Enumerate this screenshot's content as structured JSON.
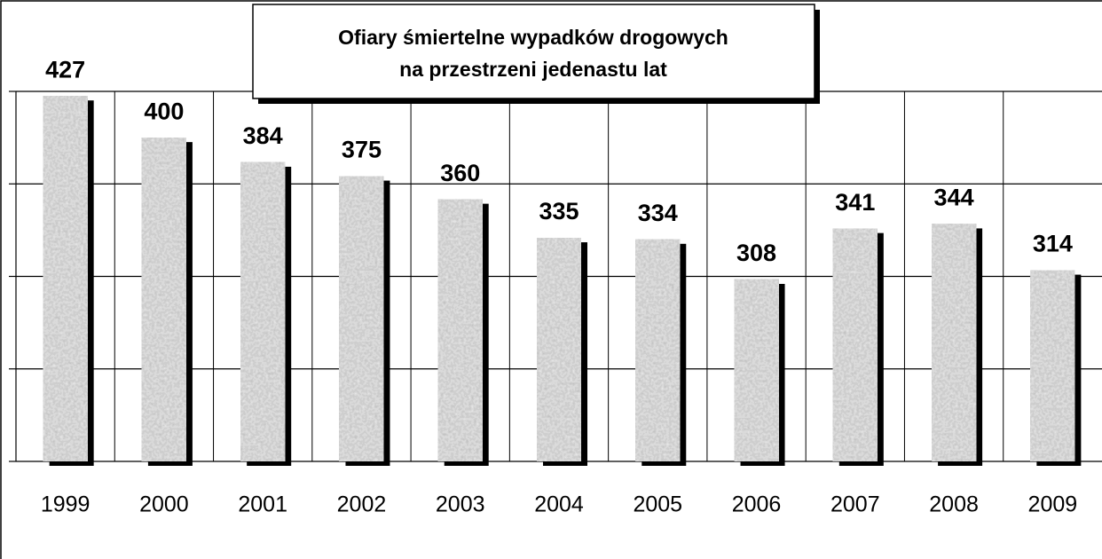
{
  "chart_data": {
    "type": "bar",
    "title": [
      "Ofiary  śmiertelne wypadków drogowych",
      "na przestrzeni jedenastu lat"
    ],
    "categories": [
      "1999",
      "2000",
      "2001",
      "2002",
      "2003",
      "2004",
      "2005",
      "2006",
      "2007",
      "2008",
      "2009"
    ],
    "values": [
      427,
      400,
      384,
      375,
      360,
      335,
      334,
      308,
      341,
      344,
      314
    ],
    "color": "#9a9a9a",
    "ylim": [
      190,
      430
    ],
    "yticks": [
      190,
      250,
      310,
      370,
      430
    ],
    "grid": true
  }
}
